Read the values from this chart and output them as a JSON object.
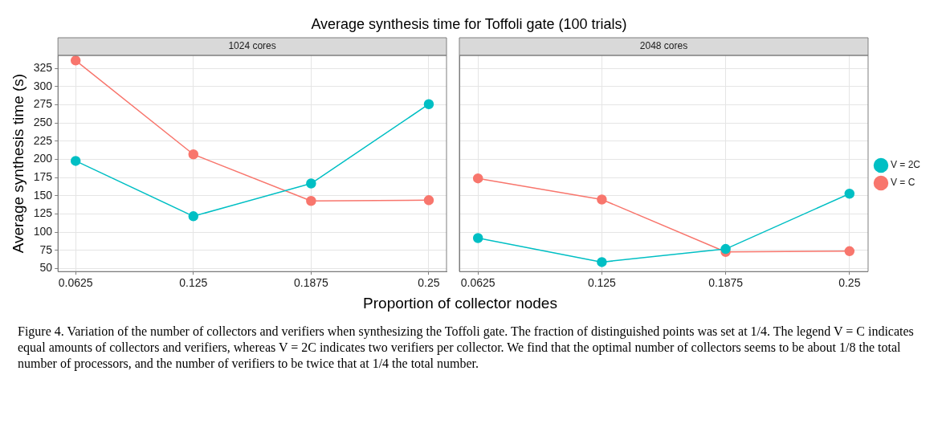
{
  "chart_data": [
    {
      "type": "line",
      "title": "Average synthesis time for Toffoli gate (100 trials)",
      "subtitle": "1024 cores",
      "xlabel": "Proportion of collector nodes",
      "ylabel": "Average synthesis time (s)",
      "x": [
        0.0625,
        0.125,
        0.1875,
        0.25
      ],
      "series": [
        {
          "color": "#f8766d",
          "values": [
            336,
            207,
            143,
            144
          ]
        },
        {
          "color": "#00bfc4",
          "values": [
            198,
            122,
            167,
            276
          ]
        }
      ],
      "xlim": [
        0.0531,
        0.2594
      ],
      "xticks": [
        0.0625,
        0.125,
        0.1875,
        0.25
      ],
      "ylim": [
        46,
        343
      ],
      "yticks": [
        50,
        75,
        100,
        125,
        150,
        175,
        200,
        225,
        250,
        275,
        300,
        325
      ],
      "grid": true,
      "marker": "circle",
      "line_style": "solid",
      "legend": false,
      "annotations": [
        "Figure 4. Variation of the number of collectors and verifiers when synthesizing the Toffoli gate. The fraction of distinguished points was set at 1/4. The legend V = C indicates equal amounts of collectors and verifiers, whereas V = 2C indicates two verifiers per collector. We find that the optimal number of collectors seems to be about 1/8 the total number of processors, and the number of verifiers to be twice that at 1/4 the total number."
      ]
    },
    {
      "type": "line",
      "subtitle": "2048 cores",
      "x": [
        0.0625,
        0.125,
        0.1875,
        0.25
      ],
      "series": [
        {
          "name": "V = C",
          "color": "#f8766d",
          "values": [
            174,
            145,
            73,
            74
          ]
        },
        {
          "name": "V = 2C",
          "color": "#00bfc4",
          "values": [
            92,
            59,
            77,
            153
          ]
        }
      ],
      "xlim": [
        0.0531,
        0.2594
      ],
      "xticks": [
        0.0625,
        0.125,
        0.1875,
        0.25
      ],
      "ylim": [
        46,
        343
      ],
      "yticks": [
        50,
        75,
        100,
        125,
        150,
        175,
        200,
        225,
        250,
        275,
        300,
        325
      ],
      "grid": true,
      "marker": "circle",
      "line_style": "solid",
      "legend": "right",
      "tick_labels": "x"
    }
  ]
}
